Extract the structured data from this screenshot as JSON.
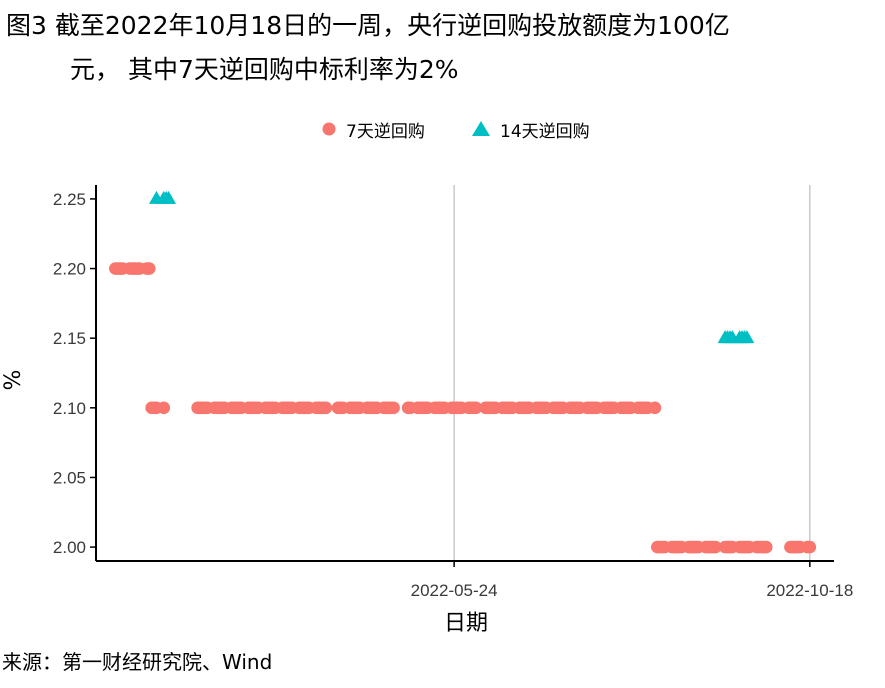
{
  "figure": {
    "title_line1": "图3  截至2022年10月18日的一周，央行逆回购投放额度为100亿",
    "title_line2": "元， 其中7天逆回购中标利率为2%",
    "source": "来源：第一财经研究院、Wind"
  },
  "colors": {
    "series_7d": "#F8766D",
    "series_14d": "#00BFC4",
    "grid": "#BEBEBE",
    "axis": "#000000"
  },
  "chart_data": {
    "type": "scatter",
    "xlabel": "日期",
    "ylabel": "%",
    "x_ticks": [
      "2022-05-24",
      "2022-10-18"
    ],
    "y_ticks": [
      "2.00",
      "2.05",
      "2.10",
      "2.15",
      "2.20",
      "2.25"
    ],
    "ylim": [
      1.99,
      2.26
    ],
    "xlim": [
      "2021-12-27",
      "2022-10-28"
    ],
    "grid": "vertical major lines only",
    "legend_position": "top",
    "series": [
      {
        "name": "7天逆回购",
        "marker": "circle",
        "points": [
          [
            "2022-01-04",
            2.2
          ],
          [
            "2022-01-05",
            2.2
          ],
          [
            "2022-01-06",
            2.2
          ],
          [
            "2022-01-07",
            2.2
          ],
          [
            "2022-01-10",
            2.2
          ],
          [
            "2022-01-11",
            2.2
          ],
          [
            "2022-01-12",
            2.2
          ],
          [
            "2022-01-13",
            2.2
          ],
          [
            "2022-01-14",
            2.2
          ],
          [
            "2022-01-17",
            2.2
          ],
          [
            "2022-01-18",
            2.2
          ],
          [
            "2022-01-19",
            2.1
          ],
          [
            "2022-01-20",
            2.1
          ],
          [
            "2022-01-21",
            2.1
          ],
          [
            "2022-01-24",
            2.1
          ],
          [
            "2022-02-07",
            2.1
          ],
          [
            "2022-02-08",
            2.1
          ],
          [
            "2022-02-09",
            2.1
          ],
          [
            "2022-02-10",
            2.1
          ],
          [
            "2022-02-11",
            2.1
          ],
          [
            "2022-02-14",
            2.1
          ],
          [
            "2022-02-15",
            2.1
          ],
          [
            "2022-02-16",
            2.1
          ],
          [
            "2022-02-17",
            2.1
          ],
          [
            "2022-02-18",
            2.1
          ],
          [
            "2022-02-21",
            2.1
          ],
          [
            "2022-02-22",
            2.1
          ],
          [
            "2022-02-23",
            2.1
          ],
          [
            "2022-02-24",
            2.1
          ],
          [
            "2022-02-25",
            2.1
          ],
          [
            "2022-02-28",
            2.1
          ],
          [
            "2022-03-01",
            2.1
          ],
          [
            "2022-03-02",
            2.1
          ],
          [
            "2022-03-03",
            2.1
          ],
          [
            "2022-03-04",
            2.1
          ],
          [
            "2022-03-07",
            2.1
          ],
          [
            "2022-03-08",
            2.1
          ],
          [
            "2022-03-09",
            2.1
          ],
          [
            "2022-03-10",
            2.1
          ],
          [
            "2022-03-11",
            2.1
          ],
          [
            "2022-03-14",
            2.1
          ],
          [
            "2022-03-15",
            2.1
          ],
          [
            "2022-03-16",
            2.1
          ],
          [
            "2022-03-17",
            2.1
          ],
          [
            "2022-03-18",
            2.1
          ],
          [
            "2022-03-21",
            2.1
          ],
          [
            "2022-03-22",
            2.1
          ],
          [
            "2022-03-23",
            2.1
          ],
          [
            "2022-03-24",
            2.1
          ],
          [
            "2022-03-25",
            2.1
          ],
          [
            "2022-03-28",
            2.1
          ],
          [
            "2022-03-29",
            2.1
          ],
          [
            "2022-03-30",
            2.1
          ],
          [
            "2022-03-31",
            2.1
          ],
          [
            "2022-04-01",
            2.1
          ],
          [
            "2022-04-06",
            2.1
          ],
          [
            "2022-04-07",
            2.1
          ],
          [
            "2022-04-08",
            2.1
          ],
          [
            "2022-04-11",
            2.1
          ],
          [
            "2022-04-12",
            2.1
          ],
          [
            "2022-04-13",
            2.1
          ],
          [
            "2022-04-14",
            2.1
          ],
          [
            "2022-04-15",
            2.1
          ],
          [
            "2022-04-18",
            2.1
          ],
          [
            "2022-04-19",
            2.1
          ],
          [
            "2022-04-20",
            2.1
          ],
          [
            "2022-04-21",
            2.1
          ],
          [
            "2022-04-22",
            2.1
          ],
          [
            "2022-04-25",
            2.1
          ],
          [
            "2022-04-26",
            2.1
          ],
          [
            "2022-04-27",
            2.1
          ],
          [
            "2022-04-28",
            2.1
          ],
          [
            "2022-04-29",
            2.1
          ],
          [
            "2022-05-05",
            2.1
          ],
          [
            "2022-05-06",
            2.1
          ],
          [
            "2022-05-09",
            2.1
          ],
          [
            "2022-05-10",
            2.1
          ],
          [
            "2022-05-11",
            2.1
          ],
          [
            "2022-05-12",
            2.1
          ],
          [
            "2022-05-13",
            2.1
          ],
          [
            "2022-05-16",
            2.1
          ],
          [
            "2022-05-17",
            2.1
          ],
          [
            "2022-05-18",
            2.1
          ],
          [
            "2022-05-19",
            2.1
          ],
          [
            "2022-05-20",
            2.1
          ],
          [
            "2022-05-23",
            2.1
          ],
          [
            "2022-05-24",
            2.1
          ],
          [
            "2022-05-25",
            2.1
          ],
          [
            "2022-05-26",
            2.1
          ],
          [
            "2022-05-27",
            2.1
          ],
          [
            "2022-05-30",
            2.1
          ],
          [
            "2022-05-31",
            2.1
          ],
          [
            "2022-06-01",
            2.1
          ],
          [
            "2022-06-02",
            2.1
          ],
          [
            "2022-06-06",
            2.1
          ],
          [
            "2022-06-07",
            2.1
          ],
          [
            "2022-06-08",
            2.1
          ],
          [
            "2022-06-09",
            2.1
          ],
          [
            "2022-06-10",
            2.1
          ],
          [
            "2022-06-13",
            2.1
          ],
          [
            "2022-06-14",
            2.1
          ],
          [
            "2022-06-15",
            2.1
          ],
          [
            "2022-06-16",
            2.1
          ],
          [
            "2022-06-17",
            2.1
          ],
          [
            "2022-06-20",
            2.1
          ],
          [
            "2022-06-21",
            2.1
          ],
          [
            "2022-06-22",
            2.1
          ],
          [
            "2022-06-23",
            2.1
          ],
          [
            "2022-06-24",
            2.1
          ],
          [
            "2022-06-27",
            2.1
          ],
          [
            "2022-06-28",
            2.1
          ],
          [
            "2022-06-29",
            2.1
          ],
          [
            "2022-06-30",
            2.1
          ],
          [
            "2022-07-01",
            2.1
          ],
          [
            "2022-07-04",
            2.1
          ],
          [
            "2022-07-05",
            2.1
          ],
          [
            "2022-07-06",
            2.1
          ],
          [
            "2022-07-07",
            2.1
          ],
          [
            "2022-07-08",
            2.1
          ],
          [
            "2022-07-11",
            2.1
          ],
          [
            "2022-07-12",
            2.1
          ],
          [
            "2022-07-13",
            2.1
          ],
          [
            "2022-07-14",
            2.1
          ],
          [
            "2022-07-15",
            2.1
          ],
          [
            "2022-07-18",
            2.1
          ],
          [
            "2022-07-19",
            2.1
          ],
          [
            "2022-07-20",
            2.1
          ],
          [
            "2022-07-21",
            2.1
          ],
          [
            "2022-07-22",
            2.1
          ],
          [
            "2022-07-25",
            2.1
          ],
          [
            "2022-07-26",
            2.1
          ],
          [
            "2022-07-27",
            2.1
          ],
          [
            "2022-07-28",
            2.1
          ],
          [
            "2022-07-29",
            2.1
          ],
          [
            "2022-08-01",
            2.1
          ],
          [
            "2022-08-02",
            2.1
          ],
          [
            "2022-08-03",
            2.1
          ],
          [
            "2022-08-04",
            2.1
          ],
          [
            "2022-08-05",
            2.1
          ],
          [
            "2022-08-08",
            2.1
          ],
          [
            "2022-08-09",
            2.1
          ],
          [
            "2022-08-10",
            2.1
          ],
          [
            "2022-08-11",
            2.1
          ],
          [
            "2022-08-12",
            2.1
          ],
          [
            "2022-08-15",
            2.1
          ],
          [
            "2022-08-16",
            2.0
          ],
          [
            "2022-08-17",
            2.0
          ],
          [
            "2022-08-18",
            2.0
          ],
          [
            "2022-08-19",
            2.0
          ],
          [
            "2022-08-22",
            2.0
          ],
          [
            "2022-08-23",
            2.0
          ],
          [
            "2022-08-24",
            2.0
          ],
          [
            "2022-08-25",
            2.0
          ],
          [
            "2022-08-26",
            2.0
          ],
          [
            "2022-08-29",
            2.0
          ],
          [
            "2022-08-30",
            2.0
          ],
          [
            "2022-08-31",
            2.0
          ],
          [
            "2022-09-01",
            2.0
          ],
          [
            "2022-09-02",
            2.0
          ],
          [
            "2022-09-05",
            2.0
          ],
          [
            "2022-09-06",
            2.0
          ],
          [
            "2022-09-07",
            2.0
          ],
          [
            "2022-09-08",
            2.0
          ],
          [
            "2022-09-09",
            2.0
          ],
          [
            "2022-09-13",
            2.0
          ],
          [
            "2022-09-14",
            2.0
          ],
          [
            "2022-09-15",
            2.0
          ],
          [
            "2022-09-16",
            2.0
          ],
          [
            "2022-09-19",
            2.0
          ],
          [
            "2022-09-20",
            2.0
          ],
          [
            "2022-09-21",
            2.0
          ],
          [
            "2022-09-22",
            2.0
          ],
          [
            "2022-09-23",
            2.0
          ],
          [
            "2022-09-26",
            2.0
          ],
          [
            "2022-09-27",
            2.0
          ],
          [
            "2022-09-28",
            2.0
          ],
          [
            "2022-09-29",
            2.0
          ],
          [
            "2022-09-30",
            2.0
          ],
          [
            "2022-10-10",
            2.0
          ],
          [
            "2022-10-11",
            2.0
          ],
          [
            "2022-10-12",
            2.0
          ],
          [
            "2022-10-13",
            2.0
          ],
          [
            "2022-10-14",
            2.0
          ],
          [
            "2022-10-17",
            2.0
          ],
          [
            "2022-10-18",
            2.0
          ]
        ]
      },
      {
        "name": "14天逆回购",
        "marker": "triangle",
        "points": [
          [
            "2022-01-21",
            2.25
          ],
          [
            "2022-01-24",
            2.25
          ],
          [
            "2022-01-25",
            2.25
          ],
          [
            "2022-01-26",
            2.25
          ],
          [
            "2022-09-13",
            2.15
          ],
          [
            "2022-09-14",
            2.15
          ],
          [
            "2022-09-15",
            2.15
          ],
          [
            "2022-09-16",
            2.15
          ],
          [
            "2022-09-19",
            2.15
          ],
          [
            "2022-09-20",
            2.15
          ],
          [
            "2022-09-21",
            2.15
          ],
          [
            "2022-09-22",
            2.15
          ]
        ]
      }
    ]
  }
}
